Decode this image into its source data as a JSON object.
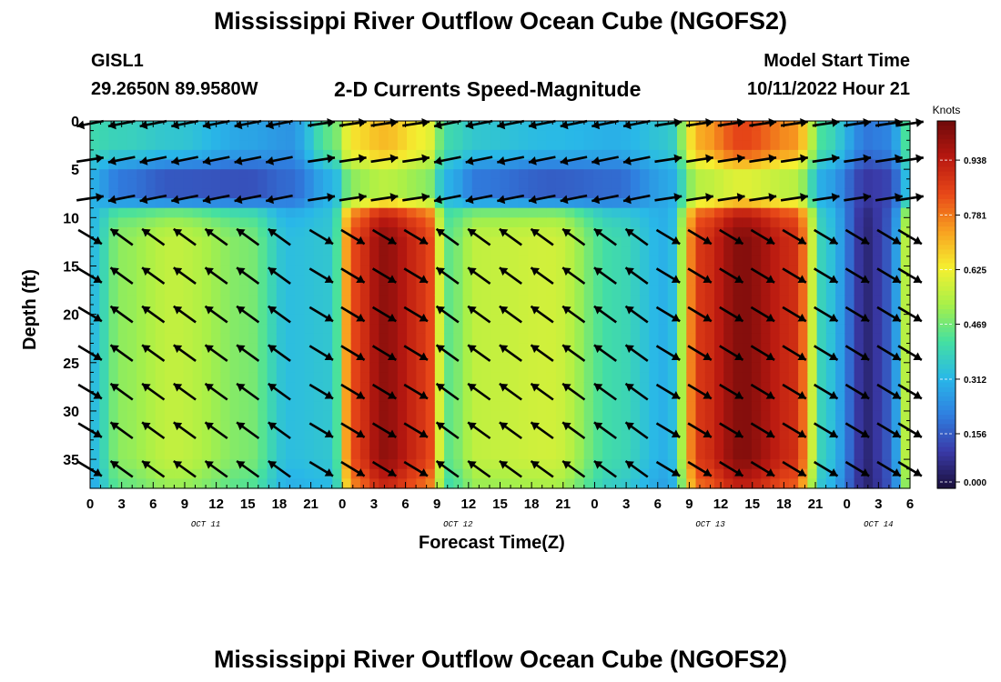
{
  "header": {
    "title_top": "Mississippi River Outflow Ocean Cube (NGOFS2)",
    "title_bottom": "Mississippi River Outflow Ocean Cube (NGOFS2)",
    "station": "GISL1",
    "coords": "29.2650N  89.9580W",
    "subtitle": "2-D Currents Speed-Magnitude",
    "model_start_label": "Model Start Time",
    "model_start_value": "10/11/2022 Hour 21"
  },
  "chart_data": {
    "type": "heatmap",
    "title": "2-D Currents Speed-Magnitude",
    "xlabel": "Forecast Time(Z)",
    "ylabel": "Depth (ft)",
    "x_tick_labels": [
      "0",
      "3",
      "6",
      "9",
      "12",
      "15",
      "18",
      "21",
      "0",
      "3",
      "6",
      "9",
      "12",
      "15",
      "18",
      "21",
      "0",
      "3",
      "6",
      "9",
      "12",
      "15",
      "18",
      "21",
      "0",
      "3",
      "6"
    ],
    "x_hours": [
      0,
      3,
      6,
      9,
      12,
      15,
      18,
      21,
      24,
      27,
      30,
      33,
      36,
      39,
      42,
      45,
      48,
      51,
      54,
      57,
      60,
      63,
      66,
      69,
      72,
      75,
      78
    ],
    "x_range_hours": [
      0,
      78
    ],
    "date_labels": [
      {
        "label": "OCT 11",
        "hour": 11
      },
      {
        "label": "OCT 12",
        "hour": 35
      },
      {
        "label": "OCT 13",
        "hour": 59
      },
      {
        "label": "OCT 14",
        "hour": 75
      }
    ],
    "y_tick_labels": [
      "0",
      "5",
      "10",
      "15",
      "20",
      "25",
      "30",
      "35"
    ],
    "y_ticks": [
      0,
      5,
      10,
      15,
      20,
      25,
      30,
      35
    ],
    "y_range_ft": [
      0,
      38
    ],
    "y_inverted": true,
    "colorbar": {
      "unit_label": "Knots",
      "tick_labels": [
        "0.000",
        "0.156",
        "0.312",
        "0.469",
        "0.625",
        "0.781",
        "0.938"
      ],
      "ticks": [
        0.0,
        0.156,
        0.312,
        0.469,
        0.625,
        0.781,
        0.938
      ],
      "range": [
        0,
        1.05
      ],
      "colormap": [
        "#1a0f3a",
        "#3a3aa8",
        "#2f7fe0",
        "#29b8e8",
        "#45e0a0",
        "#a8f048",
        "#f5f030",
        "#f8a020",
        "#e84818",
        "#b81810",
        "#6e0a0a"
      ]
    },
    "speed_model": {
      "description": "Speed magnitude (knots) by forecast hour and depth; layers: surface 0-3 ft, mid 3-8 ft, lower 10-38 ft",
      "time_profile": [
        {
          "hour": 0,
          "surface": 0.4,
          "mid": 0.3,
          "lower": 0.32
        },
        {
          "hour": 3,
          "surface": 0.38,
          "mid": 0.2,
          "lower": 0.5
        },
        {
          "hour": 8,
          "surface": 0.35,
          "mid": 0.15,
          "lower": 0.56
        },
        {
          "hour": 15,
          "surface": 0.28,
          "mid": 0.14,
          "lower": 0.48
        },
        {
          "hour": 19,
          "surface": 0.25,
          "mid": 0.18,
          "lower": 0.33
        },
        {
          "hour": 23,
          "surface": 0.45,
          "mid": 0.3,
          "lower": 0.35
        },
        {
          "hour": 25,
          "surface": 0.65,
          "mid": 0.5,
          "lower": 0.85
        },
        {
          "hour": 28,
          "surface": 0.7,
          "mid": 0.55,
          "lower": 1.0
        },
        {
          "hour": 32,
          "surface": 0.62,
          "mid": 0.5,
          "lower": 0.88
        },
        {
          "hour": 34,
          "surface": 0.4,
          "mid": 0.3,
          "lower": 0.45
        },
        {
          "hour": 37,
          "surface": 0.35,
          "mid": 0.2,
          "lower": 0.56
        },
        {
          "hour": 44,
          "surface": 0.32,
          "mid": 0.16,
          "lower": 0.58
        },
        {
          "hour": 50,
          "surface": 0.3,
          "mid": 0.18,
          "lower": 0.4
        },
        {
          "hour": 55,
          "surface": 0.35,
          "mid": 0.28,
          "lower": 0.3
        },
        {
          "hour": 58,
          "surface": 0.72,
          "mid": 0.55,
          "lower": 0.88
        },
        {
          "hour": 62,
          "surface": 0.85,
          "mid": 0.6,
          "lower": 1.02
        },
        {
          "hour": 67,
          "surface": 0.75,
          "mid": 0.55,
          "lower": 0.9
        },
        {
          "hour": 70,
          "surface": 0.4,
          "mid": 0.28,
          "lower": 0.35
        },
        {
          "hour": 74,
          "surface": 0.2,
          "mid": 0.1,
          "lower": 0.06
        },
        {
          "hour": 76,
          "surface": 0.22,
          "mid": 0.12,
          "lower": 0.15
        },
        {
          "hour": 78,
          "surface": 0.45,
          "mid": 0.35,
          "lower": 0.6
        }
      ]
    },
    "vector_depths_ft": [
      0,
      4,
      8,
      12,
      16,
      20,
      24,
      28,
      32,
      36
    ],
    "vector_hours": [
      0,
      3,
      6,
      9,
      12,
      15,
      18,
      22,
      25,
      28,
      31,
      34,
      37,
      40,
      43,
      46,
      49,
      52,
      55,
      58,
      61,
      64,
      67,
      70,
      73,
      76,
      78
    ],
    "vector_direction_by_period": [
      {
        "from_hour": 0,
        "to_hour": 2,
        "surface": "west",
        "mid": "east",
        "lower": "southeast"
      },
      {
        "from_hour": 2,
        "to_hour": 22,
        "surface": "west",
        "mid": "west",
        "lower": "northwest"
      },
      {
        "from_hour": 22,
        "to_hour": 34,
        "surface": "east",
        "mid": "east",
        "lower": "southeast"
      },
      {
        "from_hour": 34,
        "to_hour": 50,
        "surface": "west",
        "mid": "west",
        "lower": "northwest"
      },
      {
        "from_hour": 50,
        "to_hour": 55,
        "surface": "west",
        "mid": "west",
        "lower": "northwest"
      },
      {
        "from_hour": 55,
        "to_hour": 72,
        "surface": "east",
        "mid": "east",
        "lower": "southeast"
      },
      {
        "from_hour": 72,
        "to_hour": 78,
        "surface": "east",
        "mid": "east",
        "lower": "southeast"
      }
    ]
  }
}
